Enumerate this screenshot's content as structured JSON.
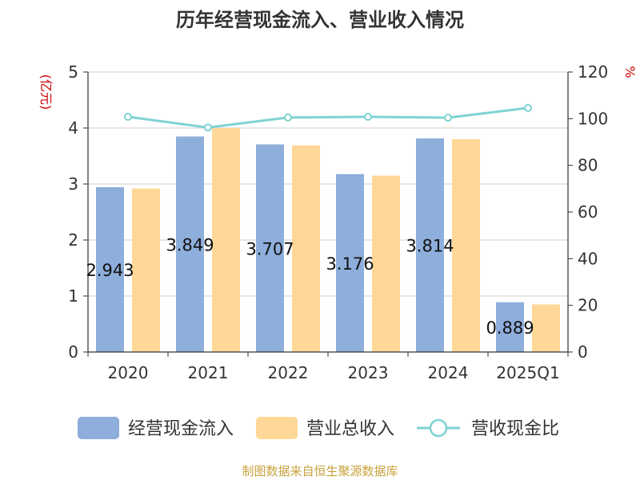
{
  "chart_data": {
    "type": "bar",
    "title": "历年经营现金流入、营业收入情况",
    "categories": [
      "2020",
      "2021",
      "2022",
      "2023",
      "2024",
      "2025Q1"
    ],
    "y_left": {
      "unit": "(亿元)",
      "ticks": [
        "0",
        "1",
        "2",
        "3",
        "4",
        "5"
      ],
      "ylim": [
        0,
        5
      ]
    },
    "y_right": {
      "unit": "%",
      "ticks": [
        "0",
        "20",
        "40",
        "60",
        "80",
        "100",
        "120"
      ],
      "ylim": [
        0,
        120
      ]
    },
    "series": [
      {
        "name": "经营现金流入",
        "type": "bar",
        "axis": "left",
        "color": "#8eaedb",
        "values": [
          2.943,
          3.849,
          3.707,
          3.176,
          3.814,
          0.889
        ],
        "labels": [
          "2.943",
          "3.849",
          "3.707",
          "3.176",
          "3.814",
          "0.889"
        ]
      },
      {
        "name": "营业总收入",
        "type": "bar",
        "axis": "left",
        "color": "#ffd898",
        "values": [
          2.92,
          4.0,
          3.69,
          3.15,
          3.8,
          0.85
        ]
      },
      {
        "name": "营收现金比",
        "type": "line",
        "axis": "right",
        "color": "#7fd3d3",
        "values": [
          100.8,
          96.2,
          100.5,
          100.8,
          100.4,
          104.6
        ]
      }
    ],
    "grid": true,
    "legend_position": "bottom",
    "source": "制图数据来自恒生聚源数据库"
  }
}
